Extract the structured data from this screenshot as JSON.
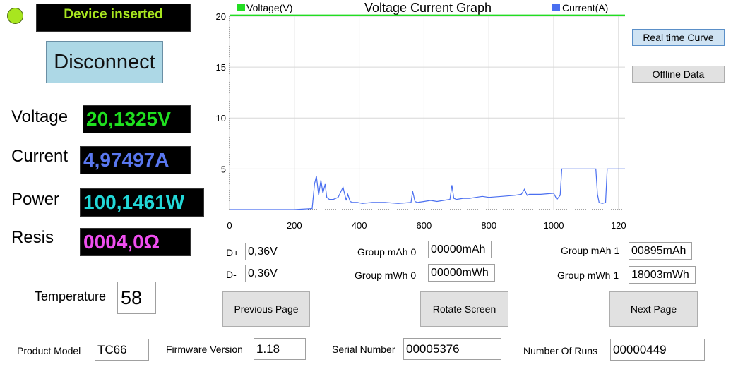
{
  "status": {
    "text": "Device inserted",
    "color": "#a8e61f"
  },
  "disconnect_label": "Disconnect",
  "measurements": {
    "voltage": {
      "label": "Voltage",
      "value": "20,1325V",
      "color": "#1fe01f"
    },
    "current": {
      "label": "Current",
      "value": "4,97497A",
      "color": "#5a78f0"
    },
    "power": {
      "label": "Power",
      "value": "100,1461W",
      "color": "#22d8d8"
    },
    "resis": {
      "label": "Resis",
      "value": "0004,0Ω",
      "color": "#f04ef0"
    }
  },
  "temperature": {
    "label": "Temperature",
    "value": "58"
  },
  "dplus": {
    "label": "D+",
    "value": "0,36V"
  },
  "dminus": {
    "label": "D-",
    "value": "0,36V"
  },
  "groups": {
    "mah0": {
      "label": "Group mAh 0",
      "value": "00000mAh"
    },
    "mwh0": {
      "label": "Group mWh 0",
      "value": "00000mWh"
    },
    "mah1": {
      "label": "Group mAh 1",
      "value": "00895mAh"
    },
    "mwh1": {
      "label": "Group mWh 1",
      "value": "18003mWh"
    }
  },
  "side_buttons": {
    "realtime": "Real time Curve",
    "offline": "Offline Data"
  },
  "nav_buttons": {
    "previous": "Previous Page",
    "rotate": "Rotate Screen",
    "next": "Next Page"
  },
  "footer": {
    "product_model": {
      "label": "Product Model",
      "value": "TC66"
    },
    "firmware": {
      "label": "Firmware Version",
      "value": "1.18"
    },
    "serial": {
      "label": "Serial Number",
      "value": "00005376"
    },
    "runs": {
      "label": "Number Of Runs",
      "value": "00000449"
    }
  },
  "chart_data": {
    "type": "line",
    "title": "Voltage Current Graph",
    "legend": [
      {
        "name": "Voltage(V)",
        "color": "#22dd22"
      },
      {
        "name": "Current(A)",
        "color": "#4a6ff0"
      }
    ],
    "xlim": [
      0,
      1220
    ],
    "ylim": [
      1,
      20
    ],
    "x_ticks": [
      "0",
      "200",
      "400",
      "600",
      "800",
      "1000",
      "120"
    ],
    "y_ticks": [
      "20",
      "15",
      "10",
      "5"
    ],
    "grid": true,
    "series": [
      {
        "name": "Voltage(V)",
        "color": "#22dd22",
        "x": [
          0,
          1220
        ],
        "y": [
          20.1,
          20.1
        ]
      },
      {
        "name": "Current(A)",
        "color": "#4a6ff0",
        "x": [
          0,
          100,
          200,
          255,
          262,
          268,
          275,
          282,
          288,
          295,
          300,
          308,
          320,
          335,
          350,
          360,
          365,
          372,
          380,
          395,
          410,
          440,
          480,
          520,
          560,
          565,
          572,
          580,
          600,
          620,
          640,
          660,
          680,
          686,
          692,
          700,
          720,
          740,
          760,
          780,
          800,
          840,
          880,
          900,
          910,
          918,
          925,
          960,
          1000,
          1010,
          1020,
          1025,
          1040,
          1080,
          1100,
          1120,
          1130,
          1135,
          1140,
          1150,
          1160,
          1165,
          1170,
          1200,
          1220
        ],
        "y": [
          1.0,
          1.0,
          1.0,
          1.1,
          3.5,
          4.3,
          2.4,
          3.9,
          2.6,
          3.5,
          2.2,
          2.0,
          2.0,
          2.2,
          3.2,
          1.9,
          2.5,
          1.8,
          1.7,
          1.7,
          1.6,
          1.7,
          1.7,
          1.6,
          1.7,
          2.8,
          1.8,
          1.7,
          1.8,
          1.9,
          1.8,
          1.9,
          2.0,
          3.4,
          2.1,
          2.0,
          2.1,
          2.1,
          2.2,
          2.3,
          2.2,
          2.3,
          2.4,
          2.5,
          3.0,
          2.4,
          2.5,
          2.5,
          2.6,
          2.0,
          2.4,
          5.0,
          5.0,
          5.0,
          5.0,
          5.0,
          5.0,
          2.5,
          1.7,
          1.6,
          1.7,
          5.0,
          5.0,
          5.0,
          5.0
        ]
      }
    ]
  }
}
